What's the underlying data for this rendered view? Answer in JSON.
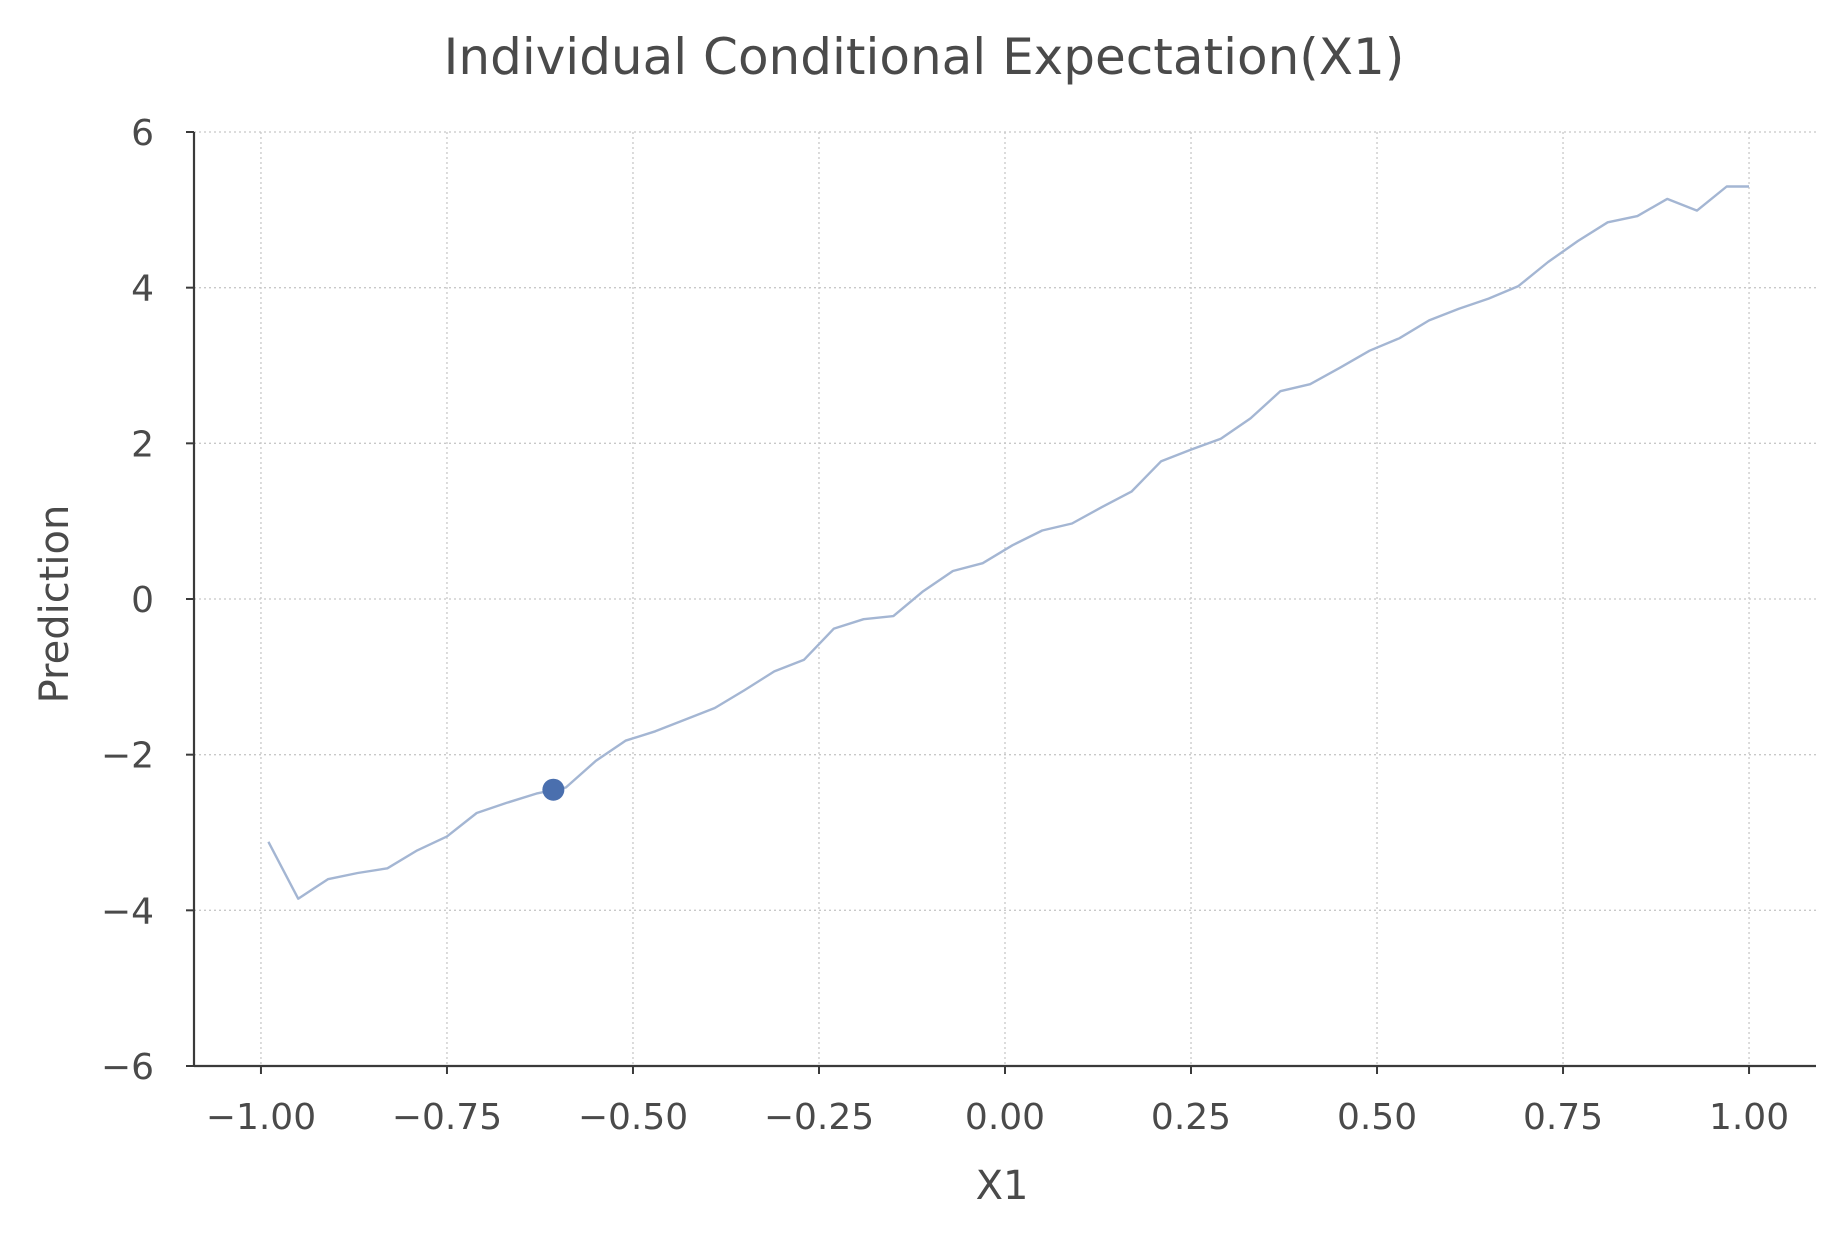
{
  "chart_data": {
    "type": "line",
    "title": "Individual Conditional Expectation(X1)",
    "xlabel": "X1",
    "ylabel": "Prediction",
    "xlim": [
      -1.09,
      1.09
    ],
    "ylim": [
      -6,
      6
    ],
    "grid": true,
    "xticks": [
      -1.0,
      -0.75,
      -0.5,
      -0.25,
      0.0,
      0.25,
      0.5,
      0.75,
      1.0
    ],
    "xtick_labels": [
      "−1.00",
      "−0.75",
      "−0.50",
      "−0.25",
      "0.00",
      "0.25",
      "0.50",
      "0.75",
      "1.00"
    ],
    "yticks": [
      6,
      4,
      2,
      0,
      -2,
      -4,
      -6
    ],
    "ytick_labels": [
      "6",
      "4",
      "2",
      "0",
      "−2",
      "−4",
      "−6"
    ],
    "series": [
      {
        "color": "#a4b6d3",
        "x": [
          -0.99,
          -0.95,
          -0.91,
          -0.87,
          -0.83,
          -0.79,
          -0.75,
          -0.71,
          -0.67,
          -0.63,
          -0.59,
          -0.55,
          -0.51,
          -0.47,
          -0.43,
          -0.39,
          -0.35,
          -0.31,
          -0.27,
          -0.23,
          -0.19,
          -0.15,
          -0.11,
          -0.07,
          -0.03,
          0.01,
          0.05,
          0.09,
          0.13,
          0.17,
          0.21,
          0.25,
          0.29,
          0.33,
          0.37,
          0.41,
          0.45,
          0.49,
          0.53,
          0.57,
          0.61,
          0.65,
          0.69,
          0.73,
          0.77,
          0.81,
          0.85,
          0.89,
          0.93,
          0.97,
          1.0
        ],
        "y": [
          -3.12,
          -3.85,
          -3.6,
          -3.52,
          -3.46,
          -3.23,
          -3.05,
          -2.75,
          -2.62,
          -2.5,
          -2.42,
          -2.08,
          -1.82,
          -1.7,
          -1.55,
          -1.4,
          -1.17,
          -0.93,
          -0.78,
          -0.38,
          -0.26,
          -0.22,
          0.1,
          0.36,
          0.46,
          0.69,
          0.88,
          0.97,
          1.18,
          1.38,
          1.77,
          1.92,
          2.06,
          2.32,
          2.67,
          2.76,
          2.97,
          3.19,
          3.35,
          3.58,
          3.73,
          3.86,
          4.02,
          4.33,
          4.6,
          4.84,
          4.92,
          5.14,
          4.99,
          5.3,
          5.3
        ]
      }
    ],
    "highlight_point": {
      "x": -0.607,
      "y": -2.45,
      "color": "#4a6fae"
    }
  }
}
